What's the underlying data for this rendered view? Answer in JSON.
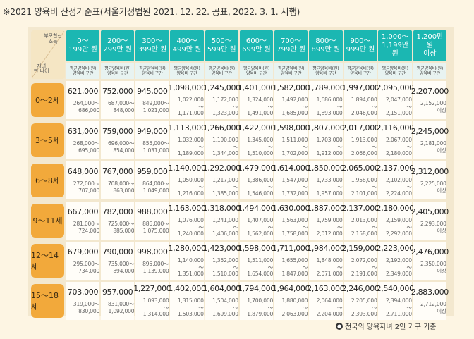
{
  "title": "※2021 양육비 산정기준표(서울가정법원 2021. 12. 22. 공표, 2022. 3. 1. 시행)",
  "corner": {
    "income_label_1": "부모합산",
    "income_label_2": "소득",
    "age_label_1": "자녀",
    "age_label_2": "만 나이"
  },
  "income_brackets": [
    {
      "line1": "0～",
      "line2": "199만 원"
    },
    {
      "line1": "200～",
      "line2": "299만 원"
    },
    {
      "line1": "300～",
      "line2": "399만 원"
    },
    {
      "line1": "400～",
      "line2": "499만 원"
    },
    {
      "line1": "500～",
      "line2": "599만 원"
    },
    {
      "line1": "600～",
      "line2": "699만 원"
    },
    {
      "line1": "700～",
      "line2": "799만 원"
    },
    {
      "line1": "800～",
      "line2": "899만 원"
    },
    {
      "line1": "900～",
      "line2": "999만 원"
    },
    {
      "line1": "1,000～",
      "line2": "1,199만 원"
    },
    {
      "line1": "1,200만 원",
      "line2": "이상"
    }
  ],
  "subheader": {
    "line1": "평균양육비(원)",
    "line2": "양육비 구간"
  },
  "rows": [
    {
      "age": "0～2세",
      "cells": [
        {
          "avg": "621,000",
          "low": "264,000～",
          "high": "686,000"
        },
        {
          "avg": "752,000",
          "low": "687,000～",
          "high": "848,000"
        },
        {
          "avg": "945,000",
          "low": "849,000～",
          "high": "1,021,000"
        },
        {
          "avg": "1,098,000",
          "low": "1,022,000～",
          "high": "1,171,000"
        },
        {
          "avg": "1,245,000",
          "low": "1,172,000～",
          "high": "1,323,000"
        },
        {
          "avg": "1,401,000",
          "low": "1,324,000～",
          "high": "1,491,000"
        },
        {
          "avg": "1,582,000",
          "low": "1,492,000～",
          "high": "1,685,000"
        },
        {
          "avg": "1,789,000",
          "low": "1,686,000～",
          "high": "1,893,000"
        },
        {
          "avg": "1,997,000",
          "low": "1,894,000～",
          "high": "2,046,000"
        },
        {
          "avg": "2,095,000",
          "low": "2,047,000～",
          "high": "2,151,000"
        },
        {
          "avg": "2,207,000",
          "low": "2,152,000",
          "high": "이상"
        }
      ]
    },
    {
      "age": "3～5세",
      "cells": [
        {
          "avg": "631,000",
          "low": "268,000～",
          "high": "695,000"
        },
        {
          "avg": "759,000",
          "low": "696,000～",
          "high": "854,000"
        },
        {
          "avg": "949,000",
          "low": "855,000～",
          "high": "1,031,000"
        },
        {
          "avg": "1,113,000",
          "low": "1,032,000～",
          "high": "1,189,000"
        },
        {
          "avg": "1,266,000",
          "low": "1,190,000～",
          "high": "1,344,000"
        },
        {
          "avg": "1,422,000",
          "low": "1,345,000～",
          "high": "1,510,000"
        },
        {
          "avg": "1,598,000",
          "low": "1,511,000～",
          "high": "1,702,000"
        },
        {
          "avg": "1,807,000",
          "low": "1,703,000～",
          "high": "1,912,000"
        },
        {
          "avg": "2,017,000",
          "low": "1,913,000～",
          "high": "2,066,000"
        },
        {
          "avg": "2,116,000",
          "low": "2,067,000～",
          "high": "2,180,000"
        },
        {
          "avg": "2,245,000",
          "low": "2,181,000",
          "high": "이상"
        }
      ]
    },
    {
      "age": "6～8세",
      "cells": [
        {
          "avg": "648,000",
          "low": "272,000～",
          "high": "707,000"
        },
        {
          "avg": "767,000",
          "low": "708,000～",
          "high": "863,000"
        },
        {
          "avg": "959,000",
          "low": "864,000～",
          "high": "1,049,000"
        },
        {
          "avg": "1,140,000",
          "low": "1,050,000～",
          "high": "1,216,000"
        },
        {
          "avg": "1,292,000",
          "low": "1,217,000～",
          "high": "1,385,000"
        },
        {
          "avg": "1,479,000",
          "low": "1,386,000～",
          "high": "1,546,000"
        },
        {
          "avg": "1,614,000",
          "low": "1,547,000～",
          "high": "1,732,000"
        },
        {
          "avg": "1,850,000",
          "low": "1,733,000～",
          "high": "1,957,000"
        },
        {
          "avg": "2,065,000",
          "low": "1,958,000～",
          "high": "2,101,000"
        },
        {
          "avg": "2,137,000",
          "low": "2,102,000～",
          "high": "2,224,000"
        },
        {
          "avg": "2,312,000",
          "low": "2,225,000",
          "high": "이상"
        }
      ]
    },
    {
      "age": "9～11세",
      "cells": [
        {
          "avg": "667,000",
          "low": "281,000～",
          "high": "724,000"
        },
        {
          "avg": "782,000",
          "low": "725,000～",
          "high": "885,000"
        },
        {
          "avg": "988,000",
          "low": "886,000～",
          "high": "1,075,000"
        },
        {
          "avg": "1,163,000",
          "low": "1,076,000～",
          "high": "1,240,000"
        },
        {
          "avg": "1,318,000",
          "low": "1,241,000～",
          "high": "1,406,000"
        },
        {
          "avg": "1,494,000",
          "low": "1,407,000～",
          "high": "1,562,000"
        },
        {
          "avg": "1,630,000",
          "low": "1,563,000～",
          "high": "1,758,000"
        },
        {
          "avg": "1,887,000",
          "low": "1,759,000～",
          "high": "2,012,000"
        },
        {
          "avg": "2,137,000",
          "low": "2,013,000～",
          "high": "2,158,000"
        },
        {
          "avg": "2,180,000",
          "low": "2,159,000～",
          "high": "2,292,000"
        },
        {
          "avg": "2,405,000",
          "low": "2,293,000",
          "high": "이상"
        }
      ]
    },
    {
      "age": "12～14세",
      "cells": [
        {
          "avg": "679,000",
          "low": "295,000～",
          "high": "734,000"
        },
        {
          "avg": "790,000",
          "low": "735,000～",
          "high": "894,000"
        },
        {
          "avg": "998,000",
          "low": "895,000～",
          "high": "1,139,000"
        },
        {
          "avg": "1,280,000",
          "low": "1,140,000～",
          "high": "1,351,000"
        },
        {
          "avg": "1,423,000",
          "low": "1,352,000～",
          "high": "1,510,000"
        },
        {
          "avg": "1,598,000",
          "low": "1,511,000～",
          "high": "1,654,000"
        },
        {
          "avg": "1,711,000",
          "low": "1,655,000～",
          "high": "1,847,000"
        },
        {
          "avg": "1,984,000",
          "low": "1,848,000～",
          "high": "2,071,000"
        },
        {
          "avg": "2,159,000",
          "low": "2,072,000～",
          "high": "2,191,000"
        },
        {
          "avg": "2,223,000",
          "low": "2,192,000～",
          "high": "2,349,000"
        },
        {
          "avg": "2,476,000",
          "low": "2,350,000",
          "high": "이상"
        }
      ]
    },
    {
      "age": "15～18세",
      "cells": [
        {
          "avg": "703,000",
          "low": "319,000～",
          "high": "830,000"
        },
        {
          "avg": "957,000",
          "low": "831,000～",
          "high": "1,092,000"
        },
        {
          "avg": "1,227,000",
          "low": "1,093,000～",
          "high": "1,314,000"
        },
        {
          "avg": "1,402,000",
          "low": "1,315,000～",
          "high": "1,503,000"
        },
        {
          "avg": "1,604,000",
          "low": "1,504,000～",
          "high": "1,699,000"
        },
        {
          "avg": "1,794,000",
          "low": "1,700,000～",
          "high": "1,879,000"
        },
        {
          "avg": "1,964,000",
          "low": "1,880,000～",
          "high": "2,063,000"
        },
        {
          "avg": "2,163,000",
          "low": "2,064,000～",
          "high": "2,204,000"
        },
        {
          "avg": "2,246,000",
          "low": "2,205,000～",
          "high": "2,393,000"
        },
        {
          "avg": "2,540,000",
          "low": "2,394,000～",
          "high": "2,711,000"
        },
        {
          "avg": "2,883,000",
          "low": "2,712,000",
          "high": "이상"
        }
      ]
    }
  ],
  "footer": {
    "icon": "info-circle-icon",
    "text": "전국의 양육자녀 2인 가구 기준"
  },
  "colors": {
    "header_teal": "#1bb7b2",
    "age_orange": "#f2a93b",
    "background": "#fdf5e3"
  }
}
